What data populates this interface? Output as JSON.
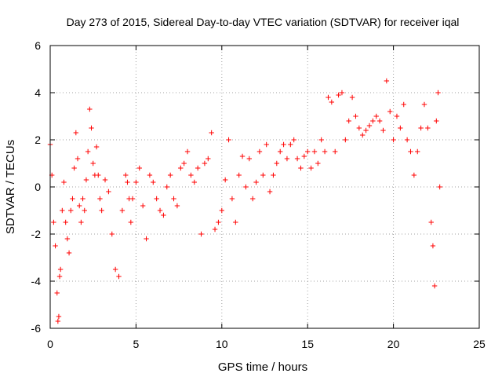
{
  "chart_data": {
    "type": "scatter",
    "title": "Day 273 of 2015, Sidereal Day-to-day VTEC variation (SDTVAR) for receiver iqal",
    "xlabel": "GPS time / hours",
    "ylabel": "SDTVAR / TECUs",
    "xlim": [
      0,
      25
    ],
    "ylim": [
      -6,
      6
    ],
    "xticks": [
      0,
      5,
      10,
      15,
      20,
      25
    ],
    "yticks": [
      -6,
      -4,
      -2,
      0,
      2,
      4,
      6
    ],
    "xtick_labels": [
      "0",
      "5",
      "10",
      "15",
      "20",
      "25"
    ],
    "ytick_labels": [
      "-6",
      "-4",
      "-2",
      "0",
      "2",
      "4",
      "6"
    ],
    "grid": true,
    "marker": "+",
    "color": "#ff0000",
    "series": [
      {
        "name": "SDTVAR",
        "x": [
          0.0,
          0.1,
          0.2,
          0.3,
          0.4,
          0.45,
          0.5,
          0.55,
          0.6,
          0.7,
          0.8,
          0.9,
          1.0,
          1.1,
          1.2,
          1.3,
          1.4,
          1.5,
          1.6,
          1.7,
          1.8,
          1.9,
          2.0,
          2.1,
          2.2,
          2.3,
          2.4,
          2.5,
          2.6,
          2.7,
          2.8,
          2.9,
          3.0,
          3.2,
          3.4,
          3.6,
          3.8,
          4.0,
          4.2,
          4.4,
          4.5,
          4.6,
          4.7,
          4.8,
          5.0,
          5.2,
          5.4,
          5.6,
          5.8,
          6.0,
          6.2,
          6.4,
          6.6,
          6.8,
          7.0,
          7.2,
          7.4,
          7.6,
          7.8,
          8.0,
          8.2,
          8.4,
          8.6,
          8.8,
          9.0,
          9.2,
          9.4,
          9.6,
          9.8,
          10.0,
          10.2,
          10.4,
          10.6,
          10.8,
          11.0,
          11.2,
          11.4,
          11.6,
          11.8,
          12.0,
          12.2,
          12.4,
          12.6,
          12.8,
          13.0,
          13.2,
          13.4,
          13.6,
          13.8,
          14.0,
          14.2,
          14.4,
          14.6,
          14.8,
          15.0,
          15.2,
          15.4,
          15.6,
          15.8,
          16.0,
          16.2,
          16.4,
          16.6,
          16.8,
          17.0,
          17.2,
          17.4,
          17.6,
          17.8,
          18.0,
          18.2,
          18.4,
          18.6,
          18.8,
          19.0,
          19.2,
          19.4,
          19.6,
          19.8,
          20.0,
          20.2,
          20.4,
          20.6,
          20.8,
          21.0,
          21.2,
          21.4,
          21.6,
          21.8,
          22.0,
          22.2,
          22.3,
          22.4,
          22.5,
          22.6,
          22.7
        ],
        "y": [
          1.8,
          0.5,
          -1.5,
          -2.5,
          -4.5,
          -5.7,
          -5.5,
          -3.8,
          -3.5,
          -1.0,
          0.2,
          -1.5,
          -2.2,
          -2.8,
          -1.0,
          -0.5,
          0.8,
          2.3,
          1.2,
          -0.8,
          -1.5,
          -0.5,
          -1.0,
          0.3,
          1.5,
          3.3,
          2.5,
          1.0,
          0.5,
          1.7,
          0.5,
          -0.5,
          -1.0,
          0.3,
          -0.2,
          -2.0,
          -3.5,
          -3.8,
          -1.0,
          0.5,
          0.2,
          -0.5,
          -1.5,
          -0.5,
          0.2,
          0.8,
          -0.8,
          -2.2,
          0.5,
          0.2,
          -0.5,
          -1.0,
          -1.2,
          0.0,
          0.5,
          -0.5,
          -0.8,
          0.8,
          1.0,
          1.5,
          0.5,
          0.2,
          0.8,
          -2.0,
          1.0,
          1.2,
          2.3,
          -1.8,
          -1.5,
          -1.0,
          0.3,
          2.0,
          -0.5,
          -1.5,
          0.5,
          1.3,
          0.0,
          1.2,
          -0.5,
          0.2,
          1.5,
          0.5,
          1.8,
          -0.2,
          0.5,
          1.0,
          1.5,
          1.8,
          1.2,
          1.8,
          2.0,
          1.2,
          0.8,
          1.3,
          1.5,
          0.8,
          1.5,
          1.0,
          2.0,
          1.5,
          3.8,
          3.6,
          1.5,
          3.9,
          4.0,
          2.0,
          2.8,
          3.8,
          3.0,
          2.5,
          2.2,
          2.4,
          2.6,
          2.8,
          3.0,
          2.8,
          2.4,
          4.5,
          3.2,
          2.0,
          3.0,
          2.5,
          3.5,
          2.0,
          1.5,
          0.5,
          1.5,
          2.5,
          3.5,
          2.5,
          -1.5,
          -2.5,
          -4.2,
          2.8,
          4.0,
          0.0
        ]
      }
    ]
  }
}
